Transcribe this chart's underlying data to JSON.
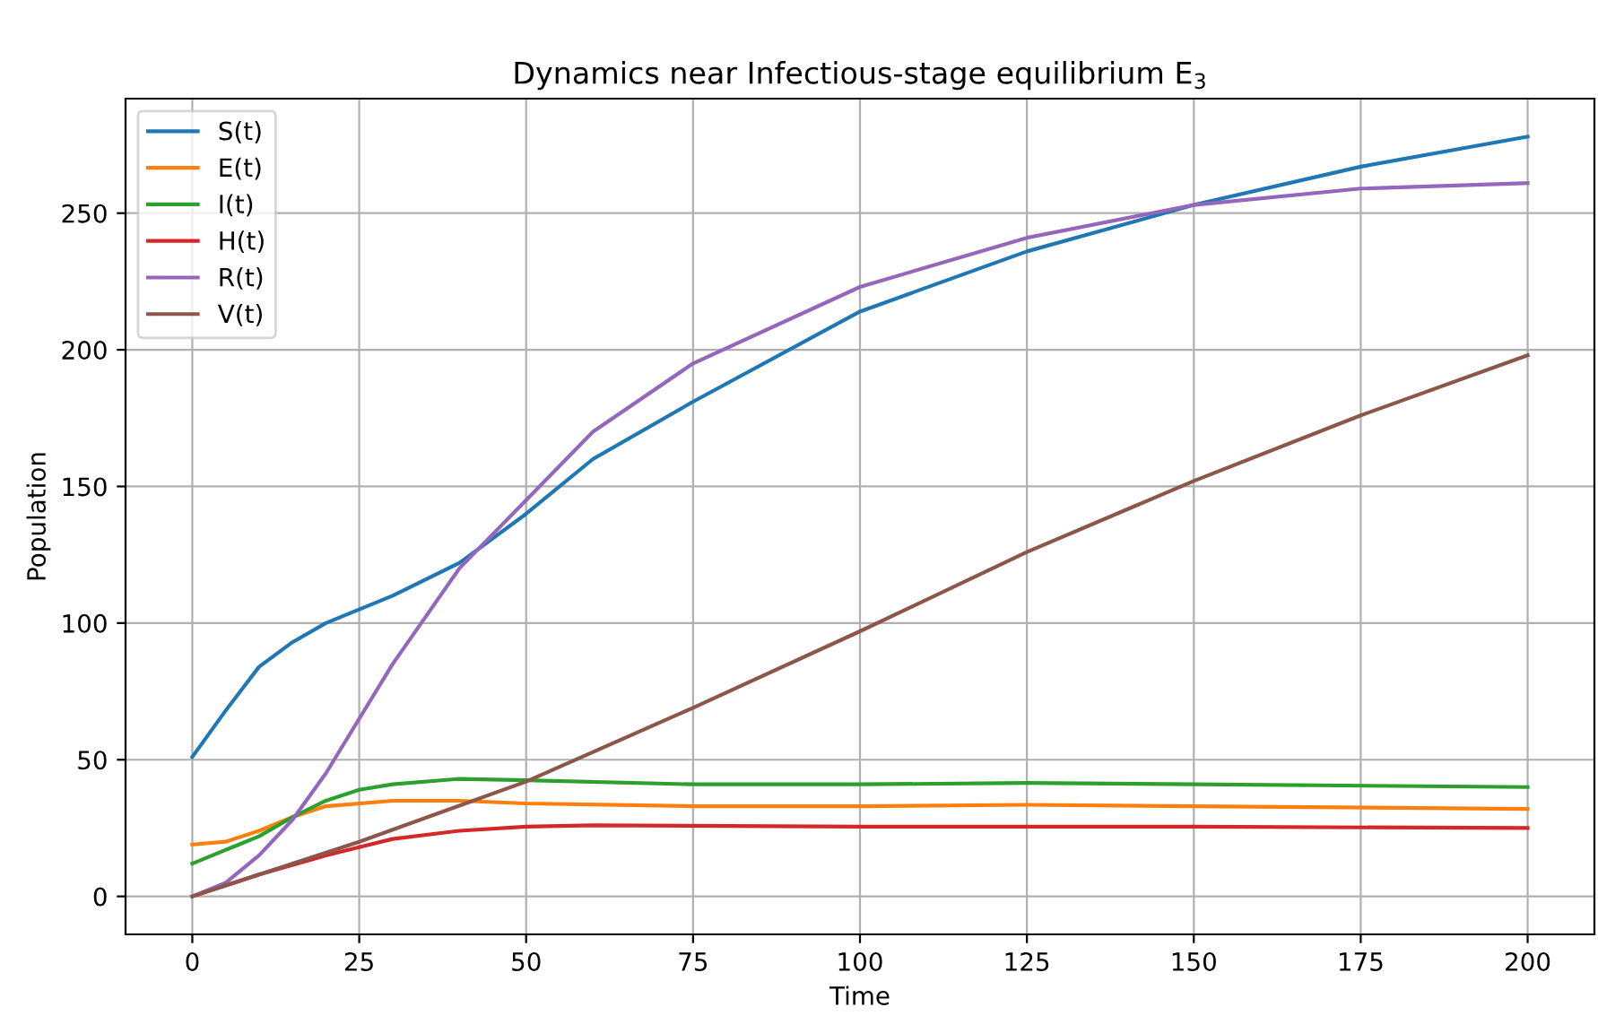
{
  "chart_data": {
    "type": "line",
    "title": "Dynamics near Infectious-stage equilibrium E$_{3}$",
    "xlabel": "Time",
    "ylabel": "Population",
    "xlim": [
      -10,
      210
    ],
    "xticks": [
      0,
      25,
      50,
      75,
      100,
      125,
      150,
      175,
      200
    ],
    "ylim": [
      -13.9,
      291.9
    ],
    "yticks": [
      0,
      50,
      100,
      150,
      200,
      250
    ],
    "grid": true,
    "legend": "top left",
    "series": [
      {
        "name": "S(t)",
        "color": "#1f77b4",
        "x": [
          0,
          5,
          10,
          15,
          20,
          25,
          30,
          40,
          50,
          60,
          75,
          100,
          125,
          150,
          175,
          200
        ],
        "values": [
          51,
          68,
          84,
          93,
          100,
          105,
          110,
          122,
          140,
          160,
          181,
          214,
          236,
          253,
          267,
          278
        ]
      },
      {
        "name": "E(t)",
        "color": "#ff7f0e",
        "x": [
          0,
          5,
          10,
          15,
          20,
          30,
          40,
          50,
          75,
          100,
          125,
          150,
          200
        ],
        "values": [
          19,
          20,
          24,
          29,
          33,
          35,
          35,
          34,
          33,
          33,
          33.5,
          33,
          32
        ]
      },
      {
        "name": "I(t)",
        "color": "#2ca02c",
        "x": [
          0,
          10,
          15,
          20,
          25,
          30,
          40,
          50,
          75,
          100,
          125,
          150,
          200
        ],
        "values": [
          12,
          22,
          29,
          35,
          39,
          41,
          43,
          42.5,
          41,
          41,
          41.5,
          41,
          40
        ]
      },
      {
        "name": "H(t)",
        "color": "#d62728",
        "x": [
          0,
          10,
          20,
          25,
          30,
          40,
          50,
          60,
          100,
          150,
          200
        ],
        "values": [
          0,
          8,
          15,
          18,
          21,
          24,
          25.5,
          26,
          25.5,
          25.5,
          25
        ]
      },
      {
        "name": "R(t)",
        "color": "#9467bd",
        "x": [
          0,
          5,
          10,
          15,
          20,
          25,
          30,
          40,
          50,
          60,
          75,
          100,
          125,
          150,
          175,
          200
        ],
        "values": [
          0,
          5,
          15,
          28,
          45,
          65,
          85,
          120,
          145,
          170,
          195,
          223,
          241,
          253,
          259,
          261
        ]
      },
      {
        "name": "V(t)",
        "color": "#8c564b",
        "x": [
          0,
          25,
          50,
          75,
          100,
          125,
          150,
          175,
          200
        ],
        "values": [
          0,
          20,
          42,
          69,
          97,
          126,
          152,
          176,
          198
        ]
      }
    ]
  }
}
